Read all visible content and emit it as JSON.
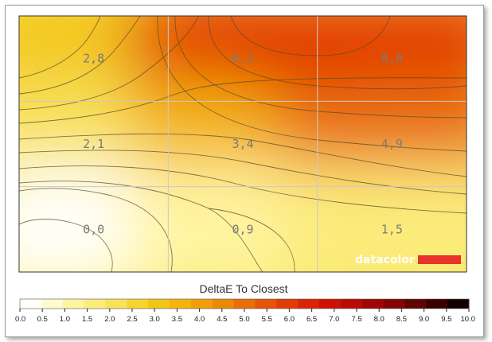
{
  "chart_data": {
    "type": "heatmap",
    "title": "",
    "metric_label": "DeltaE To Closest",
    "grid": true,
    "rows": 3,
    "cols": 3,
    "cell_values": [
      [
        "2,8",
        "6,1",
        "6,0"
      ],
      [
        "2,1",
        "3,4",
        "4,9"
      ],
      [
        "0,0",
        "0,9",
        "1,5"
      ]
    ],
    "values_numeric": [
      [
        2.8,
        6.1,
        6.0
      ],
      [
        2.1,
        3.4,
        4.9
      ],
      [
        0.0,
        0.9,
        1.5
      ]
    ],
    "scale": {
      "min": 0,
      "max": 10,
      "step": 0.5,
      "tick_labels": [
        "0.0",
        "0.5",
        "1.0",
        "1.5",
        "2.0",
        "2.5",
        "3.0",
        "3.5",
        "4.0",
        "4.5",
        "5.0",
        "5.5",
        "6.0",
        "6.5",
        "7.0",
        "7.5",
        "8.0",
        "8.5",
        "9.0",
        "9.5",
        "10.0"
      ],
      "colors": [
        "#fffff8",
        "#fffbcc",
        "#fff4a0",
        "#fbec7c",
        "#f8e25a",
        "#f5d42f",
        "#f3c615",
        "#f3b40e",
        "#f09f0b",
        "#ec8809",
        "#e96e08",
        "#e75406",
        "#e23b05",
        "#dc2305",
        "#cf1104",
        "#b90a04",
        "#9f0704",
        "#820503",
        "#5e0402",
        "#390201",
        "#120000"
      ]
    }
  },
  "brand": {
    "name": "datacolor",
    "color": "#e8322a"
  }
}
